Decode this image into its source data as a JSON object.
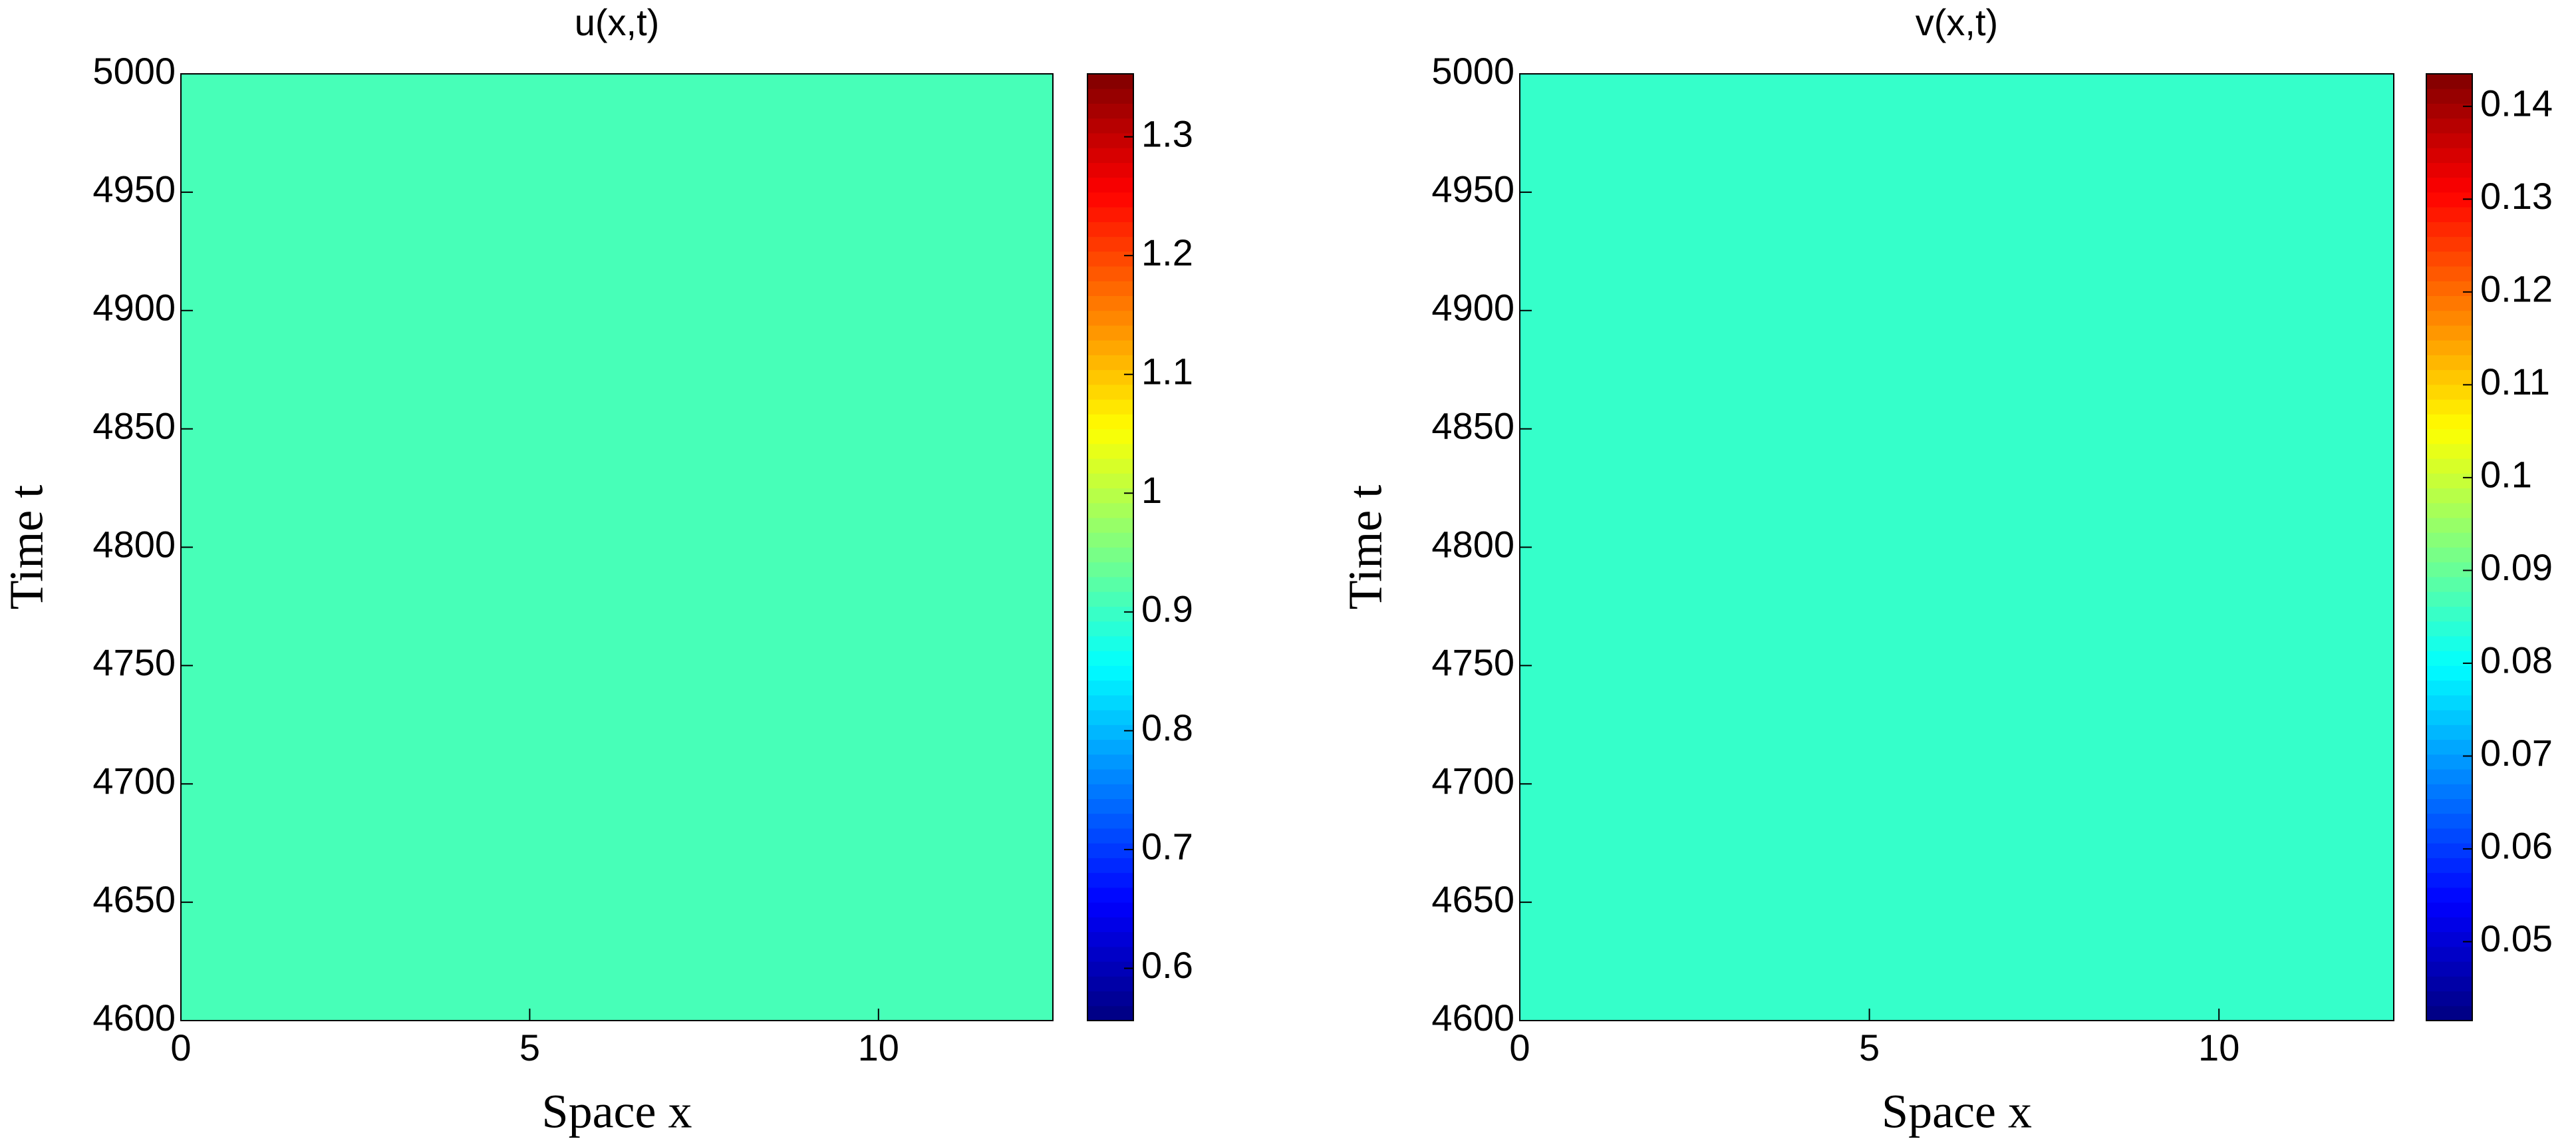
{
  "chart_data": [
    {
      "type": "heatmap",
      "title": "u(x,t)",
      "xlabel": "Space x",
      "ylabel": "Time t",
      "colormap": "jet",
      "values": [
        [
          0.91
        ]
      ],
      "xlim": [
        0,
        12.5
      ],
      "xticks": [
        0,
        5,
        10
      ],
      "ylim": [
        4600,
        5000
      ],
      "yticks": [
        4600,
        4650,
        4700,
        4750,
        4800,
        4850,
        4900,
        4950,
        5000
      ],
      "clim": [
        0.556,
        1.353
      ],
      "cticks": [
        0.6,
        0.7,
        0.8,
        0.9,
        1,
        1.1,
        1.2,
        1.3
      ]
    },
    {
      "type": "heatmap",
      "title": "v(x,t)",
      "xlabel": "Space x",
      "ylabel": "Time t",
      "colormap": "jet",
      "values": [
        [
          0.085
        ]
      ],
      "xlim": [
        0,
        12.5
      ],
      "xticks": [
        0,
        5,
        10
      ],
      "ylim": [
        4600,
        5000
      ],
      "yticks": [
        4600,
        4650,
        4700,
        4750,
        4800,
        4850,
        4900,
        4950,
        5000
      ],
      "clim": [
        0.0415,
        0.1435
      ],
      "cticks": [
        0.05,
        0.06,
        0.07,
        0.08,
        0.09,
        0.1,
        0.11,
        0.12,
        0.13,
        0.14
      ]
    }
  ]
}
